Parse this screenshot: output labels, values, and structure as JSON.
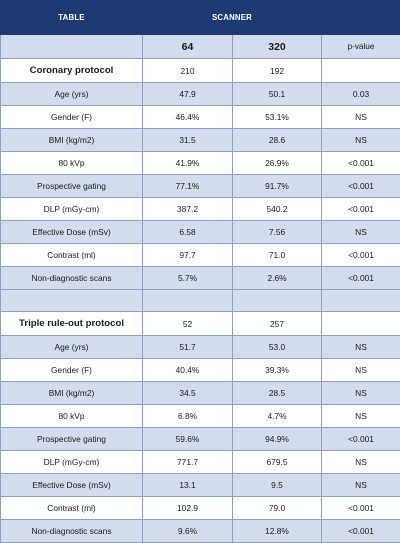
{
  "header": {
    "table_label": "TABLE",
    "scanner_label": "SCANNER",
    "col_64": "64",
    "col_320": "320",
    "col_pvalue": "p-value"
  },
  "coronary": {
    "title": "Coronary protocol",
    "n_64": "210",
    "n_320": "192",
    "rows": [
      {
        "label": "Age (yrs)",
        "v64": "47.9",
        "v320": "50.1",
        "p": "0.03"
      },
      {
        "label": "Gender (F)",
        "v64": "46.4%",
        "v320": "53.1%",
        "p": "NS"
      },
      {
        "label": "BMI (kg/m2)",
        "v64": "31.5",
        "v320": "28.6",
        "p": "NS"
      },
      {
        "label": "80 kVp",
        "v64": "41.9%",
        "v320": "26.9%",
        "p": "<0.001"
      },
      {
        "label": "Prospective gating",
        "v64": "77.1%",
        "v320": "91.7%",
        "p": "<0.001"
      },
      {
        "label": "DLP (mGy-cm)",
        "v64": "387.2",
        "v320": "540.2",
        "p": "<0.001"
      },
      {
        "label": "Effective Dose (mSv)",
        "v64": "6.58",
        "v320": "7.56",
        "p": "NS"
      },
      {
        "label": "Contrast (ml)",
        "v64": "97.7",
        "v320": "71.0",
        "p": "<0.001"
      },
      {
        "label": "Non-diagnostic scans",
        "v64": "5.7%",
        "v320": "2.6%",
        "p": "<0.001"
      }
    ]
  },
  "triple": {
    "title": "Triple rule-out protocol",
    "n_64": "52",
    "n_320": "257",
    "rows": [
      {
        "label": "Age (yrs)",
        "v64": "51.7",
        "v320": "53.0",
        "p": "NS"
      },
      {
        "label": "Gender (F)",
        "v64": "40.4%",
        "v320": "39.3%",
        "p": "NS"
      },
      {
        "label": "BMI (kg/m2)",
        "v64": "34.5",
        "v320": "28.5",
        "p": "NS"
      },
      {
        "label": "80 kVp",
        "v64": "6.8%",
        "v320": "4.7%",
        "p": "NS"
      },
      {
        "label": "Prospective gating",
        "v64": "59.6%",
        "v320": "94.9%",
        "p": "<0.001"
      },
      {
        "label": "DLP (mGy-cm)",
        "v64": "771.7",
        "v320": "679.5",
        "p": "NS"
      },
      {
        "label": "Effective Dose (mSv)",
        "v64": "13.1",
        "v320": "9.5",
        "p": "NS"
      },
      {
        "label": "Contrast (ml)",
        "v64": "102.9",
        "v320": "79.0",
        "p": "<0.001"
      },
      {
        "label": "Non-diagnostic scans",
        "v64": "9.6%",
        "v320": "12.8%",
        "p": "<0.001"
      }
    ]
  },
  "colors": {
    "header_bg": "#1e3a73",
    "band_bg": "#d2dcec",
    "grid_line": "#8ea0bf"
  }
}
